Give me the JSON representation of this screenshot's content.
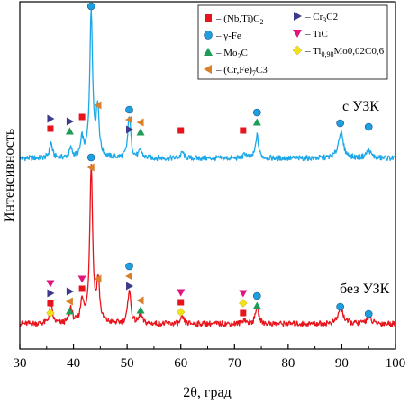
{
  "chart_data": {
    "type": "line",
    "xlabel": "2θ, град",
    "ylabel": "Интенсивность",
    "xlim": [
      30,
      100
    ],
    "x_ticks": [
      30,
      40,
      50,
      60,
      70,
      80,
      90,
      100
    ],
    "y_ticks_labeled": false,
    "grid": false,
    "legend_position": "top-right",
    "legend": [
      {
        "symbol": "square-red",
        "color": "#e8141c",
        "text": "– (Nb,Ti)C",
        "sub": "2",
        "tail": ""
      },
      {
        "symbol": "circle-blue",
        "color": "#1ca0e0",
        "text": "– γ-Fe",
        "sub": "",
        "tail": ""
      },
      {
        "symbol": "triangle-up-green",
        "color": "#1e9b56",
        "text": "– Mo",
        "sub": "2",
        "tail": "C"
      },
      {
        "symbol": "triangle-left-orange",
        "color": "#d9802a",
        "text": "– (Cr,Fe)",
        "sub": "7",
        "tail": "C3"
      },
      {
        "symbol": "triangle-right-purple",
        "color": "#3d3a8c",
        "text": "– Cr",
        "sub": "3",
        "tail": "C2"
      },
      {
        "symbol": "triangle-down-magenta",
        "color": "#e0147c",
        "text": "– TiC",
        "sub": "",
        "tail": ""
      },
      {
        "symbol": "diamond-yellow",
        "color": "#f2e21a",
        "text": "– Ti",
        "sub": "0,98",
        "tail": "Mo0,02C0,6"
      }
    ],
    "series": [
      {
        "name": "с УЗК",
        "color": "#1ca8e8",
        "peaks": [
          {
            "x": 35.8,
            "h": 0.1
          },
          {
            "x": 39.5,
            "h": 0.06
          },
          {
            "x": 41.6,
            "h": 0.12
          },
          {
            "x": 43.3,
            "h": 0.95
          },
          {
            "x": 44.5,
            "h": 0.32
          },
          {
            "x": 50.4,
            "h": 0.28
          },
          {
            "x": 52.5,
            "h": 0.05
          },
          {
            "x": 60.3,
            "h": 0.04
          },
          {
            "x": 72.0,
            "h": 0.03
          },
          {
            "x": 74.2,
            "h": 0.15
          },
          {
            "x": 89.8,
            "h": 0.17
          },
          {
            "x": 95.0,
            "h": 0.05
          }
        ]
      },
      {
        "name": "без УЗК",
        "color": "#e8141c",
        "peaks": [
          {
            "x": 35.8,
            "h": 0.12
          },
          {
            "x": 39.5,
            "h": 0.1
          },
          {
            "x": 41.6,
            "h": 0.15
          },
          {
            "x": 43.3,
            "h": 1.0
          },
          {
            "x": 44.6,
            "h": 0.26
          },
          {
            "x": 50.4,
            "h": 0.22
          },
          {
            "x": 52.5,
            "h": 0.06
          },
          {
            "x": 60.3,
            "h": 0.04
          },
          {
            "x": 71.8,
            "h": 0.03
          },
          {
            "x": 74.2,
            "h": 0.12
          },
          {
            "x": 89.8,
            "h": 0.1
          },
          {
            "x": 95.0,
            "h": 0.04
          }
        ]
      }
    ],
    "phase_markers": [
      {
        "series": "с УЗК",
        "x": 35.7,
        "symbols": [
          "square-red",
          "triangle-right-purple"
        ]
      },
      {
        "series": "с УЗК",
        "x": 39.3,
        "symbols": [
          "triangle-up-green",
          "triangle-right-purple"
        ]
      },
      {
        "series": "с УЗК",
        "x": 41.6,
        "symbols": [
          "square-red"
        ]
      },
      {
        "series": "с УЗК",
        "x": 43.3,
        "symbols": [
          "circle-blue"
        ]
      },
      {
        "series": "с УЗК",
        "x": 44.6,
        "symbols": [
          "triangle-left-orange"
        ]
      },
      {
        "series": "с УЗК",
        "x": 50.4,
        "symbols": [
          "triangle-right-purple",
          "triangle-left-orange",
          "circle-blue"
        ]
      },
      {
        "series": "с УЗК",
        "x": 52.5,
        "symbols": [
          "triangle-up-green",
          "triangle-left-orange"
        ]
      },
      {
        "series": "с УЗК",
        "x": 60.0,
        "symbols": [
          "square-red"
        ]
      },
      {
        "series": "с УЗК",
        "x": 71.6,
        "symbols": [
          "square-red"
        ]
      },
      {
        "series": "с УЗК",
        "x": 74.2,
        "symbols": [
          "triangle-up-green",
          "circle-blue"
        ]
      },
      {
        "series": "с УЗК",
        "x": 89.7,
        "symbols": [
          "circle-blue"
        ]
      },
      {
        "series": "с УЗК",
        "x": 95.0,
        "symbols": [
          "circle-blue"
        ]
      },
      {
        "series": "без УЗК",
        "x": 35.7,
        "symbols": [
          "diamond-yellow",
          "square-red",
          "triangle-right-purple",
          "triangle-down-magenta"
        ]
      },
      {
        "series": "без УЗК",
        "x": 39.3,
        "symbols": [
          "triangle-up-green",
          "triangle-left-orange",
          "triangle-right-purple"
        ]
      },
      {
        "series": "без УЗК",
        "x": 41.6,
        "symbols": [
          "square-red",
          "triangle-down-magenta"
        ]
      },
      {
        "series": "без УЗК",
        "x": 43.3,
        "symbols": [
          "triangle-left-orange",
          "circle-blue"
        ]
      },
      {
        "series": "без УЗК",
        "x": 44.6,
        "symbols": [
          "triangle-left-orange"
        ]
      },
      {
        "series": "без УЗК",
        "x": 50.4,
        "symbols": [
          "triangle-right-purple",
          "triangle-left-orange",
          "circle-blue"
        ]
      },
      {
        "series": "без УЗК",
        "x": 52.5,
        "symbols": [
          "triangle-up-green",
          "triangle-left-orange"
        ]
      },
      {
        "series": "без УЗК",
        "x": 60.0,
        "symbols": [
          "diamond-yellow",
          "square-red",
          "triangle-down-magenta"
        ]
      },
      {
        "series": "без УЗК",
        "x": 71.6,
        "symbols": [
          "square-red",
          "diamond-yellow",
          "triangle-down-magenta"
        ]
      },
      {
        "series": "без УЗК",
        "x": 74.2,
        "symbols": [
          "triangle-up-green",
          "circle-blue"
        ]
      },
      {
        "series": "без УЗК",
        "x": 89.7,
        "symbols": [
          "circle-blue"
        ]
      },
      {
        "series": "без УЗК",
        "x": 95.0,
        "symbols": [
          "circle-blue"
        ]
      }
    ]
  }
}
